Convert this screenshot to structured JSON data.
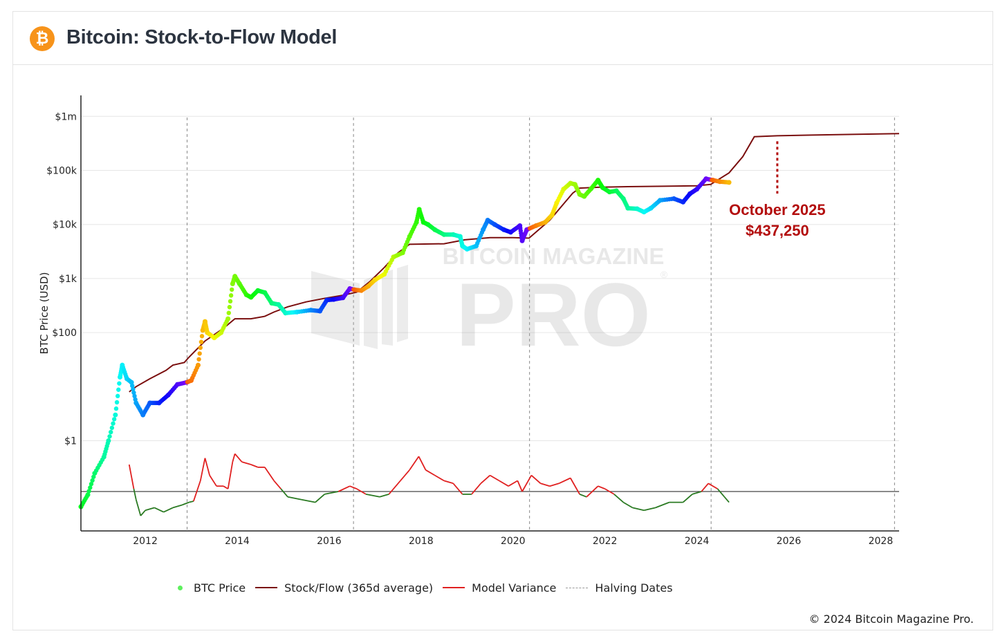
{
  "header": {
    "logo_glyph": "₿",
    "title": "Bitcoin: Stock-to-Flow Model"
  },
  "watermark": {
    "line1": "BITCOIN MAGAZINE",
    "line2": "PRO",
    "mark": "®"
  },
  "footer": {
    "copyright": "© 2024 Bitcoin Magazine Pro."
  },
  "colors": {
    "btc_price_legend": "#5ef05e",
    "stock_flow": "#7a0e0e",
    "variance_red": "#e02020",
    "variance_green": "#2a7a22",
    "halving": "#999999",
    "annotation": "#b30d0d"
  },
  "chart_data": {
    "type": "line",
    "y_scale": "log",
    "ylabel": "BTC Price (USD)",
    "y_ticks": [
      {
        "value": 1,
        "label": "$1"
      },
      {
        "value": 100,
        "label": "$100"
      },
      {
        "value": 1000,
        "label": "$1k"
      },
      {
        "value": 10000,
        "label": "$10k"
      },
      {
        "value": 100000,
        "label": "$100k"
      },
      {
        "value": 1000000,
        "label": "$1m"
      }
    ],
    "x_ticks": [
      2012,
      2014,
      2016,
      2018,
      2020,
      2022,
      2024,
      2026,
      2028
    ],
    "xlim": [
      2010.6,
      2028.4
    ],
    "halving_dates": [
      2012.91,
      2016.53,
      2020.36,
      2024.31,
      2028.3
    ],
    "annotation": {
      "x": 2025.75,
      "value": 437250,
      "line1": "October 2025",
      "line2": "$437,250"
    },
    "legend": [
      "BTC Price",
      "Stock/Flow (365d average)",
      "Model Variance",
      "Halving Dates"
    ],
    "series": [
      {
        "name": "BTC Price",
        "points": [
          [
            2010.6,
            0.06
          ],
          [
            2010.75,
            0.1
          ],
          [
            2010.9,
            0.25
          ],
          [
            2011.1,
            0.5
          ],
          [
            2011.2,
            1
          ],
          [
            2011.35,
            3
          ],
          [
            2011.45,
            15
          ],
          [
            2011.5,
            25
          ],
          [
            2011.6,
            14
          ],
          [
            2011.7,
            12
          ],
          [
            2011.8,
            5
          ],
          [
            2011.95,
            3
          ],
          [
            2012.1,
            5
          ],
          [
            2012.3,
            5
          ],
          [
            2012.5,
            7
          ],
          [
            2012.7,
            11
          ],
          [
            2012.9,
            12
          ],
          [
            2013.0,
            13
          ],
          [
            2013.15,
            25
          ],
          [
            2013.25,
            110
          ],
          [
            2013.3,
            160
          ],
          [
            2013.35,
            100
          ],
          [
            2013.5,
            80
          ],
          [
            2013.65,
            100
          ],
          [
            2013.8,
            180
          ],
          [
            2013.9,
            800
          ],
          [
            2013.95,
            1100
          ],
          [
            2014.05,
            800
          ],
          [
            2014.2,
            500
          ],
          [
            2014.3,
            450
          ],
          [
            2014.45,
            600
          ],
          [
            2014.6,
            550
          ],
          [
            2014.75,
            350
          ],
          [
            2014.9,
            330
          ],
          [
            2015.05,
            230
          ],
          [
            2015.3,
            240
          ],
          [
            2015.6,
            260
          ],
          [
            2015.8,
            250
          ],
          [
            2015.95,
            400
          ],
          [
            2016.1,
            410
          ],
          [
            2016.3,
            440
          ],
          [
            2016.45,
            650
          ],
          [
            2016.55,
            620
          ],
          [
            2016.7,
            600
          ],
          [
            2016.85,
            720
          ],
          [
            2017.0,
            950
          ],
          [
            2017.2,
            1200
          ],
          [
            2017.4,
            2500
          ],
          [
            2017.6,
            3000
          ],
          [
            2017.75,
            6000
          ],
          [
            2017.9,
            11000
          ],
          [
            2017.96,
            19000
          ],
          [
            2018.05,
            11000
          ],
          [
            2018.15,
            10000
          ],
          [
            2018.3,
            8000
          ],
          [
            2018.5,
            6500
          ],
          [
            2018.7,
            6500
          ],
          [
            2018.85,
            6000
          ],
          [
            2018.9,
            4000
          ],
          [
            2019.0,
            3500
          ],
          [
            2019.2,
            4000
          ],
          [
            2019.35,
            8000
          ],
          [
            2019.45,
            12000
          ],
          [
            2019.6,
            10000
          ],
          [
            2019.8,
            8000
          ],
          [
            2019.95,
            7200
          ],
          [
            2020.15,
            9500
          ],
          [
            2020.2,
            5000
          ],
          [
            2020.3,
            8000
          ],
          [
            2020.5,
            9500
          ],
          [
            2020.7,
            11000
          ],
          [
            2020.85,
            15000
          ],
          [
            2020.95,
            25000
          ],
          [
            2021.1,
            45000
          ],
          [
            2021.25,
            58000
          ],
          [
            2021.35,
            55000
          ],
          [
            2021.45,
            36000
          ],
          [
            2021.55,
            33000
          ],
          [
            2021.7,
            46000
          ],
          [
            2021.85,
            66000
          ],
          [
            2021.95,
            48000
          ],
          [
            2022.1,
            40000
          ],
          [
            2022.25,
            42000
          ],
          [
            2022.4,
            30000
          ],
          [
            2022.5,
            20000
          ],
          [
            2022.7,
            19500
          ],
          [
            2022.85,
            17000
          ],
          [
            2023.0,
            20000
          ],
          [
            2023.2,
            28000
          ],
          [
            2023.5,
            30000
          ],
          [
            2023.7,
            26000
          ],
          [
            2023.85,
            37000
          ],
          [
            2024.0,
            45000
          ],
          [
            2024.2,
            70000
          ],
          [
            2024.35,
            66000
          ],
          [
            2024.5,
            62000
          ],
          [
            2024.7,
            60000
          ]
        ]
      },
      {
        "name": "Stock/Flow (365d average)",
        "points": [
          [
            2011.65,
            8
          ],
          [
            2011.8,
            10
          ],
          [
            2012.1,
            14
          ],
          [
            2012.45,
            20
          ],
          [
            2012.6,
            25
          ],
          [
            2012.85,
            28
          ],
          [
            2012.95,
            35
          ],
          [
            2013.3,
            70
          ],
          [
            2013.7,
            120
          ],
          [
            2013.95,
            180
          ],
          [
            2014.3,
            180
          ],
          [
            2014.6,
            200
          ],
          [
            2014.8,
            240
          ],
          [
            2015.1,
            300
          ],
          [
            2015.5,
            370
          ],
          [
            2015.9,
            430
          ],
          [
            2016.3,
            490
          ],
          [
            2016.6,
            560
          ],
          [
            2016.9,
            900
          ],
          [
            2017.2,
            1600
          ],
          [
            2017.5,
            3000
          ],
          [
            2017.75,
            4300
          ],
          [
            2018.5,
            4400
          ],
          [
            2018.95,
            5200
          ],
          [
            2019.5,
            5700
          ],
          [
            2020.0,
            5700
          ],
          [
            2020.35,
            5600
          ],
          [
            2020.8,
            12000
          ],
          [
            2021.1,
            24000
          ],
          [
            2021.3,
            38000
          ],
          [
            2021.45,
            47000
          ],
          [
            2021.9,
            49000
          ],
          [
            2022.5,
            50000
          ],
          [
            2023.3,
            51000
          ],
          [
            2024.0,
            52000
          ],
          [
            2024.3,
            55000
          ],
          [
            2024.7,
            90000
          ],
          [
            2025.0,
            180000
          ],
          [
            2025.25,
            420000
          ],
          [
            2025.75,
            437250
          ],
          [
            2026.5,
            450000
          ],
          [
            2027.5,
            465000
          ],
          [
            2028.4,
            480000
          ]
        ]
      }
    ],
    "model_variance": {
      "baseline": 0,
      "points": [
        [
          2011.65,
          0.5
        ],
        [
          2011.75,
          0.05
        ],
        [
          2011.8,
          -0.15
        ],
        [
          2011.9,
          -0.45
        ],
        [
          2012.0,
          -0.35
        ],
        [
          2012.2,
          -0.3
        ],
        [
          2012.4,
          -0.38
        ],
        [
          2012.6,
          -0.3
        ],
        [
          2012.8,
          -0.25
        ],
        [
          2012.95,
          -0.2
        ],
        [
          2013.05,
          -0.18
        ],
        [
          2013.2,
          0.2
        ],
        [
          2013.3,
          0.62
        ],
        [
          2013.4,
          0.3
        ],
        [
          2013.55,
          0.1
        ],
        [
          2013.7,
          0.1
        ],
        [
          2013.8,
          0.05
        ],
        [
          2013.9,
          0.55
        ],
        [
          2013.95,
          0.7
        ],
        [
          2014.1,
          0.55
        ],
        [
          2014.3,
          0.5
        ],
        [
          2014.45,
          0.45
        ],
        [
          2014.6,
          0.45
        ],
        [
          2014.8,
          0.2
        ],
        [
          2014.95,
          0.05
        ],
        [
          2015.1,
          -0.1
        ],
        [
          2015.4,
          -0.15
        ],
        [
          2015.7,
          -0.2
        ],
        [
          2015.9,
          -0.05
        ],
        [
          2016.2,
          0.0
        ],
        [
          2016.45,
          0.1
        ],
        [
          2016.6,
          0.05
        ],
        [
          2016.8,
          -0.05
        ],
        [
          2017.1,
          -0.1
        ],
        [
          2017.3,
          -0.05
        ],
        [
          2017.55,
          0.2
        ],
        [
          2017.75,
          0.4
        ],
        [
          2017.95,
          0.65
        ],
        [
          2018.1,
          0.4
        ],
        [
          2018.3,
          0.3
        ],
        [
          2018.5,
          0.2
        ],
        [
          2018.7,
          0.15
        ],
        [
          2018.9,
          -0.05
        ],
        [
          2019.1,
          -0.05
        ],
        [
          2019.3,
          0.15
        ],
        [
          2019.5,
          0.3
        ],
        [
          2019.7,
          0.2
        ],
        [
          2019.9,
          0.1
        ],
        [
          2020.1,
          0.2
        ],
        [
          2020.2,
          0.0
        ],
        [
          2020.4,
          0.3
        ],
        [
          2020.6,
          0.15
        ],
        [
          2020.8,
          0.1
        ],
        [
          2021.0,
          0.15
        ],
        [
          2021.25,
          0.25
        ],
        [
          2021.45,
          -0.05
        ],
        [
          2021.6,
          -0.1
        ],
        [
          2021.85,
          0.1
        ],
        [
          2022.0,
          0.05
        ],
        [
          2022.2,
          -0.05
        ],
        [
          2022.4,
          -0.2
        ],
        [
          2022.6,
          -0.3
        ],
        [
          2022.85,
          -0.35
        ],
        [
          2023.1,
          -0.3
        ],
        [
          2023.4,
          -0.2
        ],
        [
          2023.7,
          -0.2
        ],
        [
          2023.9,
          -0.05
        ],
        [
          2024.1,
          0.0
        ],
        [
          2024.25,
          0.15
        ],
        [
          2024.45,
          0.05
        ],
        [
          2024.6,
          -0.1
        ],
        [
          2024.7,
          -0.2
        ]
      ]
    }
  }
}
